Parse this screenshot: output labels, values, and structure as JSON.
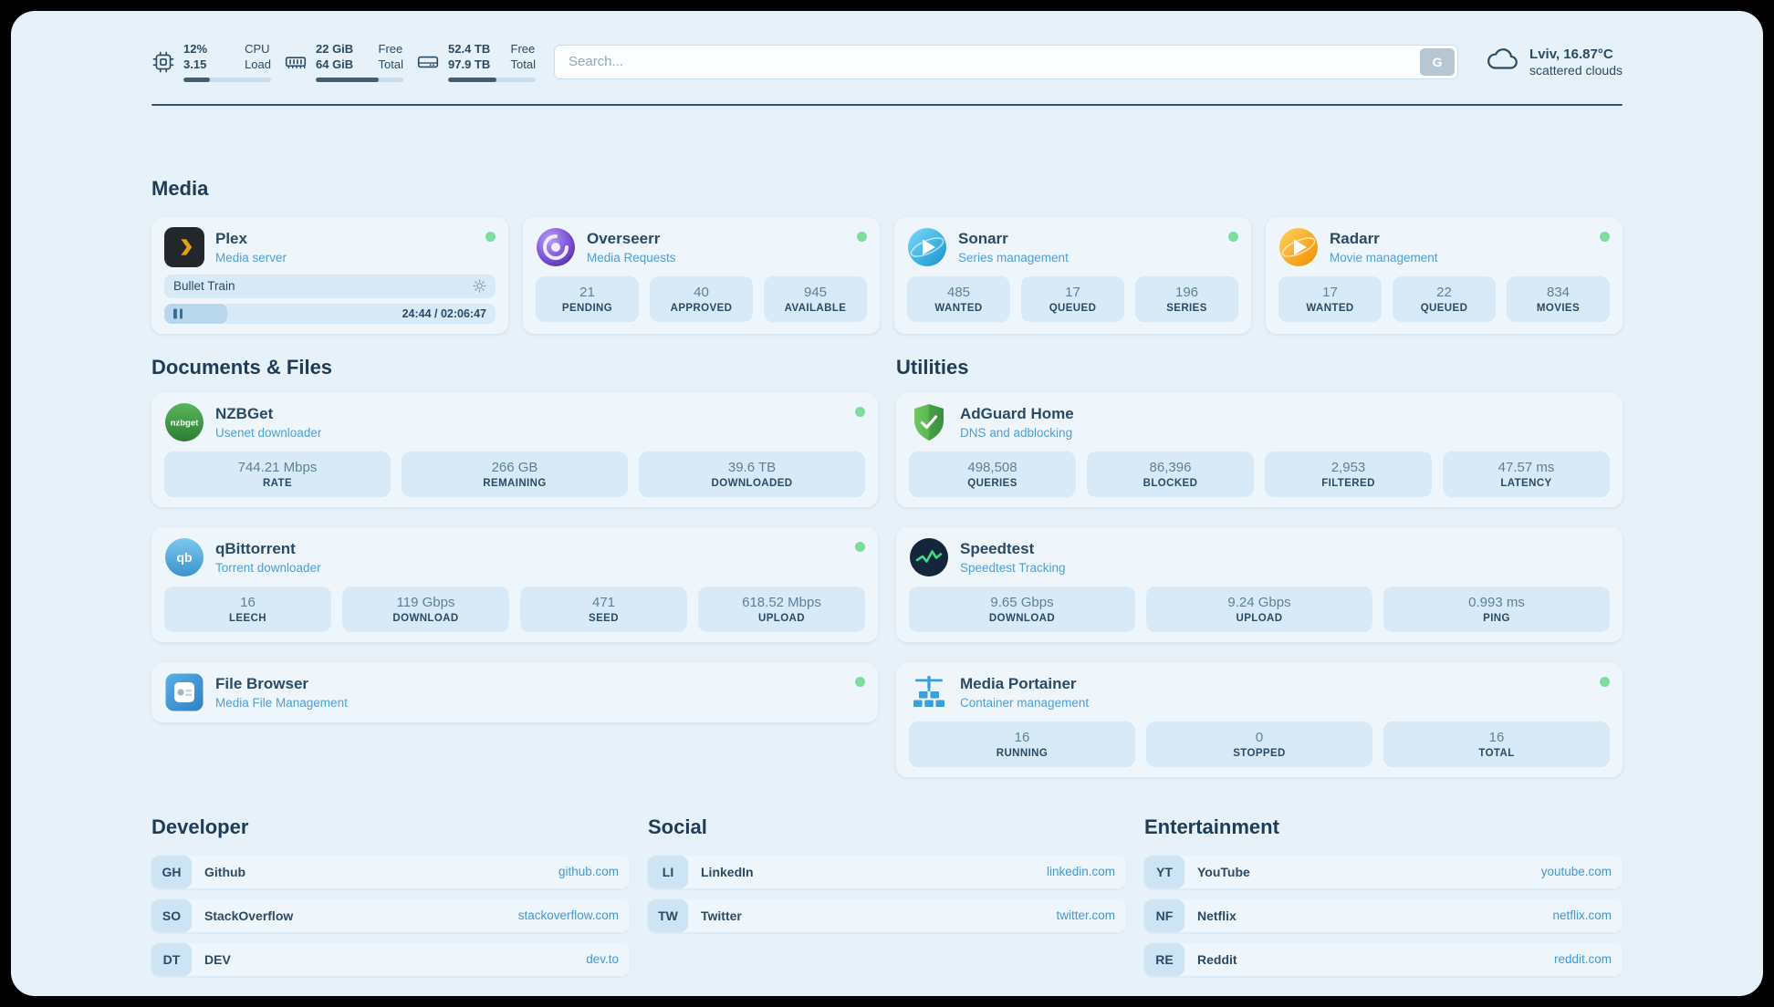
{
  "theme": {
    "page_bg": "#e6f1f9",
    "card_bg": "#eef6fc",
    "stat_box_bg": "#d8eaf8",
    "accent_blue": "#3e9ad9",
    "text_dark": "#2b4a63",
    "status_green": "#7edc9c"
  },
  "icons": {
    "nzbget_text": "nzbget",
    "qbittorrent_text": "qb"
  },
  "header": {
    "resources": [
      {
        "icon": "cpu-icon",
        "row1": {
          "value": "12%",
          "label": "CPU"
        },
        "row2": {
          "value": "3.15",
          "label": "Load"
        },
        "progress_pct": 30
      },
      {
        "icon": "memory-icon",
        "row1": {
          "value": "22 GiB",
          "label": "Free"
        },
        "row2": {
          "value": "64 GiB",
          "label": "Total"
        },
        "progress_pct": 72
      },
      {
        "icon": "disk-icon",
        "row1": {
          "value": "52.4 TB",
          "label": "Free"
        },
        "row2": {
          "value": "97.9 TB",
          "label": "Total"
        },
        "progress_pct": 55
      }
    ],
    "search": {
      "placeholder": "Search...",
      "provider_button": "G"
    },
    "weather": {
      "location": "Lviv, 16.87°C",
      "condition": "scattered clouds"
    }
  },
  "sections": {
    "media": {
      "title": "Media",
      "plex": {
        "name": "Plex",
        "subtitle": "Media server",
        "online": true,
        "now_playing": "Bullet Train",
        "progress_pct": 19,
        "time": "24:44 / 02:06:47"
      },
      "overseerr": {
        "name": "Overseerr",
        "subtitle": "Media Requests",
        "online": true,
        "stats": [
          {
            "value": "21",
            "label": "PENDING"
          },
          {
            "value": "40",
            "label": "APPROVED"
          },
          {
            "value": "945",
            "label": "AVAILABLE"
          }
        ]
      },
      "sonarr": {
        "name": "Sonarr",
        "subtitle": "Series management",
        "online": true,
        "stats": [
          {
            "value": "485",
            "label": "WANTED"
          },
          {
            "value": "17",
            "label": "QUEUED"
          },
          {
            "value": "196",
            "label": "SERIES"
          }
        ]
      },
      "radarr": {
        "name": "Radarr",
        "subtitle": "Movie management",
        "online": true,
        "stats": [
          {
            "value": "17",
            "label": "WANTED"
          },
          {
            "value": "22",
            "label": "QUEUED"
          },
          {
            "value": "834",
            "label": "MOVIES"
          }
        ]
      }
    },
    "documents": {
      "title": "Documents & Files",
      "nzbget": {
        "name": "NZBGet",
        "subtitle": "Usenet downloader",
        "online": true,
        "stats": [
          {
            "value": "744.21 Mbps",
            "label": "RATE"
          },
          {
            "value": "266 GB",
            "label": "REMAINING"
          },
          {
            "value": "39.6 TB",
            "label": "DOWNLOADED"
          }
        ]
      },
      "qbittorrent": {
        "name": "qBittorrent",
        "subtitle": "Torrent downloader",
        "online": true,
        "stats": [
          {
            "value": "16",
            "label": "LEECH"
          },
          {
            "value": "119 Gbps",
            "label": "DOWNLOAD"
          },
          {
            "value": "471",
            "label": "SEED"
          },
          {
            "value": "618.52 Mbps",
            "label": "UPLOAD"
          }
        ]
      },
      "filebrowser": {
        "name": "File Browser",
        "subtitle": "Media File Management",
        "online": true
      }
    },
    "utilities": {
      "title": "Utilities",
      "adguard": {
        "name": "AdGuard Home",
        "subtitle": "DNS and adblocking",
        "stats": [
          {
            "value": "498,508",
            "label": "QUERIES"
          },
          {
            "value": "86,396",
            "label": "BLOCKED"
          },
          {
            "value": "2,953",
            "label": "FILTERED"
          },
          {
            "value": "47.57 ms",
            "label": "LATENCY"
          }
        ]
      },
      "speedtest": {
        "name": "Speedtest",
        "subtitle": "Speedtest Tracking",
        "stats": [
          {
            "value": "9.65 Gbps",
            "label": "DOWNLOAD"
          },
          {
            "value": "9.24 Gbps",
            "label": "UPLOAD"
          },
          {
            "value": "0.993 ms",
            "label": "PING"
          }
        ]
      },
      "portainer": {
        "name": "Media Portainer",
        "subtitle": "Container management",
        "online": true,
        "stats": [
          {
            "value": "16",
            "label": "RUNNING"
          },
          {
            "value": "0",
            "label": "STOPPED"
          },
          {
            "value": "16",
            "label": "TOTAL"
          }
        ]
      }
    },
    "bookmarks": [
      {
        "title": "Developer",
        "items": [
          {
            "abbr": "GH",
            "name": "Github",
            "url": "github.com"
          },
          {
            "abbr": "SO",
            "name": "StackOverflow",
            "url": "stackoverflow.com"
          },
          {
            "abbr": "DT",
            "name": "DEV",
            "url": "dev.to"
          }
        ]
      },
      {
        "title": "Social",
        "items": [
          {
            "abbr": "LI",
            "name": "LinkedIn",
            "url": "linkedin.com"
          },
          {
            "abbr": "TW",
            "name": "Twitter",
            "url": "twitter.com"
          }
        ]
      },
      {
        "title": "Entertainment",
        "items": [
          {
            "abbr": "YT",
            "name": "YouTube",
            "url": "youtube.com"
          },
          {
            "abbr": "NF",
            "name": "Netflix",
            "url": "netflix.com"
          },
          {
            "abbr": "RE",
            "name": "Reddit",
            "url": "reddit.com"
          }
        ]
      }
    ]
  }
}
